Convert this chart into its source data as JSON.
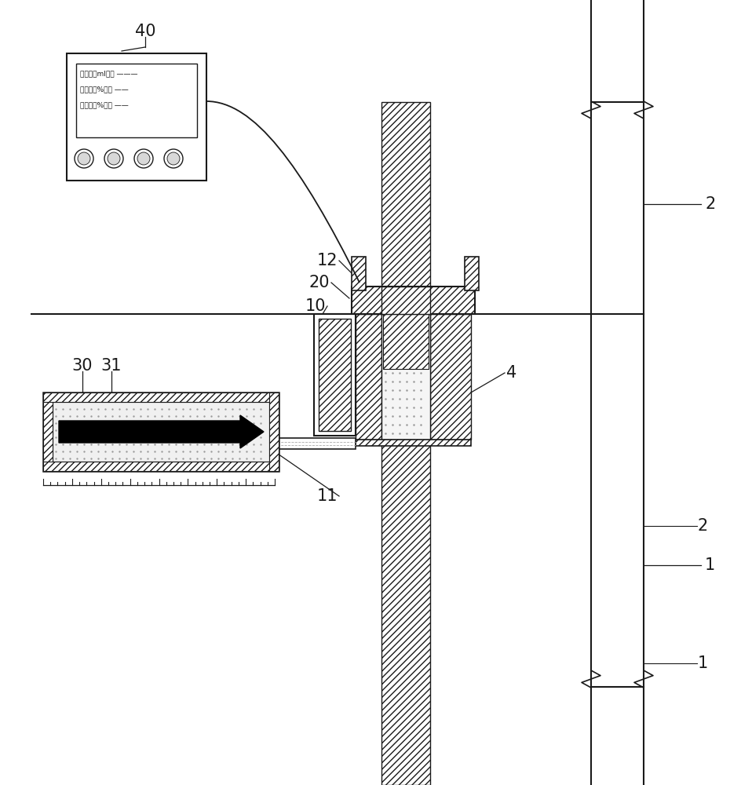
{
  "bg_color": "#ffffff",
  "line_color": "#1a1a1a",
  "label_40": "40",
  "label_2": "2",
  "label_1": "1",
  "label_4": "4",
  "label_10": "10",
  "label_11": "11",
  "label_12": "12",
  "label_20": "20",
  "label_30": "30",
  "label_31": "31",
  "display_line1": "注入量（ml）： ———",
  "display_line2": "填充度（%）： ——",
  "display_line3": "饱满度（%）： ——",
  "font_size_label": 15
}
